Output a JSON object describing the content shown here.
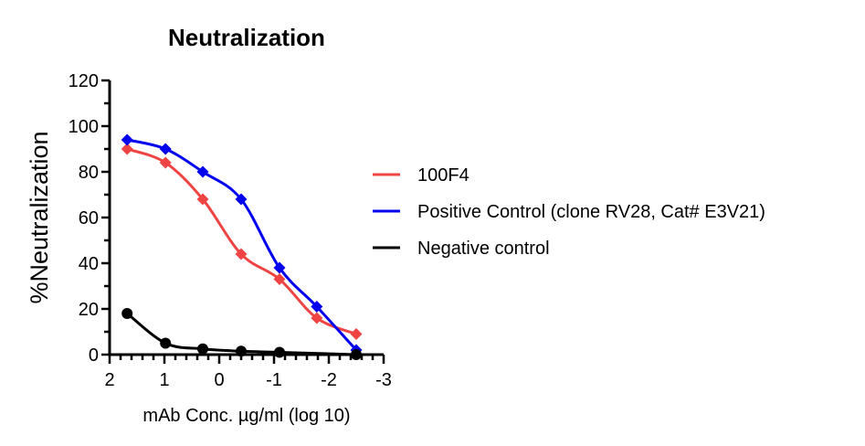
{
  "chart_data": {
    "type": "line",
    "title": "Neutralization",
    "xlabel": "mAb Conc. µg/ml (log 10)",
    "ylabel": "%Neutralization",
    "xlim": [
      2,
      -3
    ],
    "ylim": [
      0,
      120
    ],
    "x_ticks": [
      2,
      1,
      0,
      -1,
      -2,
      -3
    ],
    "x_tick_labels": [
      "2",
      "1",
      "0",
      "-1",
      "-2",
      "-3"
    ],
    "y_ticks": [
      0,
      20,
      40,
      60,
      80,
      100,
      120
    ],
    "y_tick_labels": [
      "0",
      "20",
      "40",
      "60",
      "80",
      "100",
      "120"
    ],
    "x_minor_step": 0.2,
    "y_minor_step": 10,
    "grid": false,
    "legend_position": "right",
    "x": [
      1.68,
      0.98,
      0.3,
      -0.4,
      -1.1,
      -1.78,
      -2.5
    ],
    "series": [
      {
        "name": "100F4",
        "color": "#ee4444",
        "marker": "diamond",
        "values": [
          90,
          84,
          68,
          44,
          33,
          16,
          9
        ]
      },
      {
        "name": "Positive Control (clone RV28, Cat# E3V21)",
        "color": "#0000ee",
        "marker": "diamond",
        "values": [
          94,
          90,
          80,
          68,
          38,
          21,
          2
        ]
      },
      {
        "name": "Negative control",
        "color": "#000000",
        "marker": "circle",
        "values": [
          18,
          5,
          2.5,
          1.5,
          1,
          null,
          0
        ]
      }
    ]
  }
}
